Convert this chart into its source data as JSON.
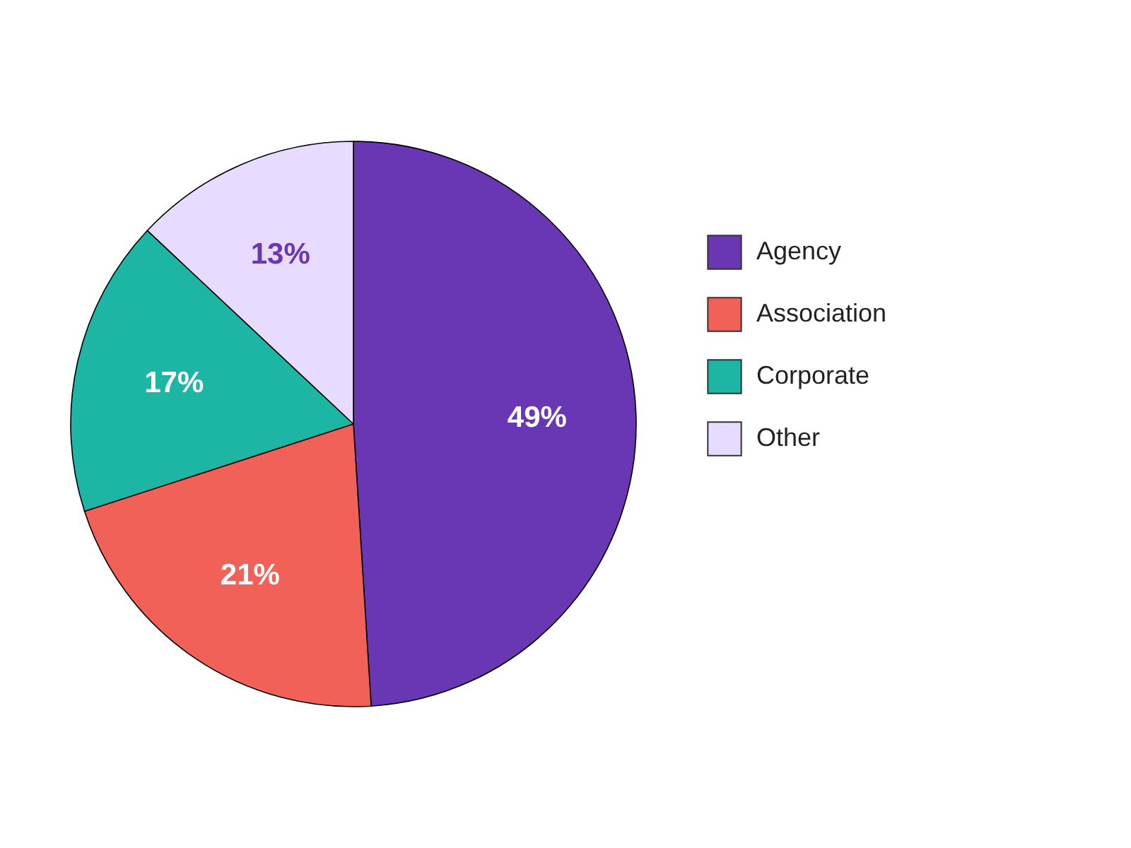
{
  "chart_data": {
    "type": "pie",
    "categories": [
      "Agency",
      "Association",
      "Corporate",
      "Other"
    ],
    "values": [
      49,
      21,
      17,
      13
    ],
    "colors": [
      "#6937b3",
      "#f26157",
      "#1db5a4",
      "#e7dbff"
    ],
    "value_labels": [
      "49%",
      "21%",
      "17%",
      "13%"
    ],
    "legend": "right"
  }
}
